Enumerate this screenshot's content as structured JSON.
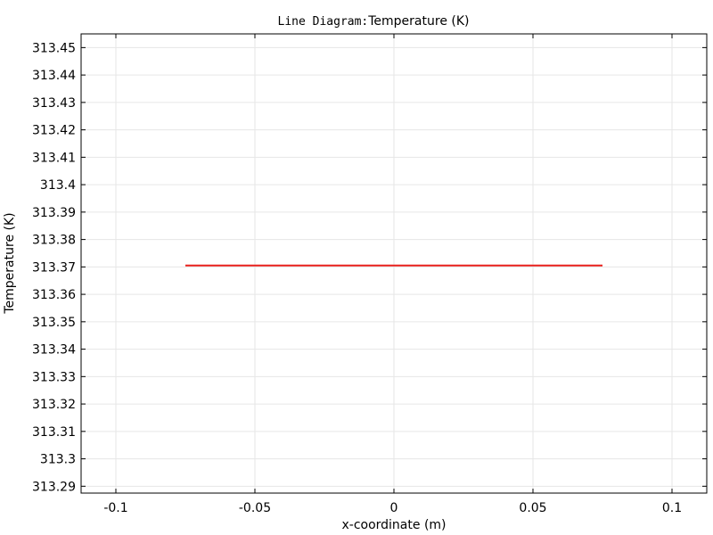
{
  "chart_data": {
    "type": "line",
    "title_prefix": "Line Diagram:",
    "title": "Temperature (K)",
    "xlabel": "x-coordinate (m)",
    "ylabel": "Temperature (K)",
    "xlim": [
      -0.1125,
      0.1125
    ],
    "ylim": [
      313.2875,
      313.455
    ],
    "grid": true,
    "x_ticks": [
      -0.1,
      -0.05,
      0,
      0.05,
      0.1
    ],
    "x_tick_labels": [
      "-0.1",
      "-0.05",
      "0",
      "0.05",
      "0.1"
    ],
    "y_ticks": [
      313.29,
      313.3,
      313.31,
      313.32,
      313.33,
      313.34,
      313.35,
      313.36,
      313.37,
      313.38,
      313.39,
      313.4,
      313.41,
      313.42,
      313.43,
      313.44,
      313.45
    ],
    "y_tick_labels": [
      "313.29",
      "313.3",
      "313.31",
      "313.32",
      "313.33",
      "313.34",
      "313.35",
      "313.36",
      "313.37",
      "313.38",
      "313.39",
      "313.4",
      "313.41",
      "313.42",
      "313.43",
      "313.44",
      "313.45"
    ],
    "series": [
      {
        "color": "#e8201c",
        "x": [
          -0.075,
          0.075
        ],
        "y": [
          313.3705,
          313.3705
        ]
      }
    ]
  }
}
